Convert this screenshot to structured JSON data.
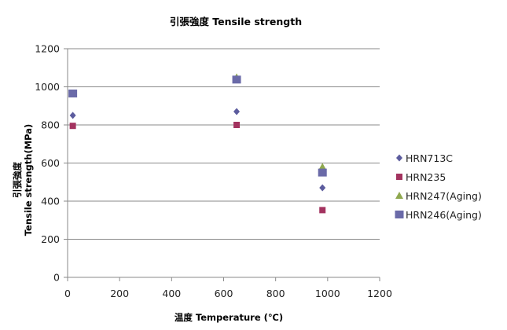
{
  "chart_data": {
    "type": "scatter",
    "title": "引張強度 Tensile strength",
    "xlabel": "温度 Temperature (℃)",
    "ylabel_line1": "引張強度",
    "ylabel_line2": "Tensile strength(MPa)",
    "xlim": [
      0,
      1200
    ],
    "ylim": [
      0,
      1200
    ],
    "x_ticks": [
      0,
      200,
      400,
      600,
      800,
      1000,
      1200
    ],
    "y_ticks": [
      0,
      200,
      400,
      600,
      800,
      1000,
      1200
    ],
    "grid": "horizontal",
    "legend_position": "right",
    "series": [
      {
        "name": "HRN713C",
        "marker": "diamond",
        "color": "#5c5c9e",
        "points": [
          [
            20,
            850
          ],
          [
            650,
            870
          ],
          [
            980,
            470
          ]
        ]
      },
      {
        "name": "HRN235",
        "marker": "square",
        "color": "#a3335f",
        "points": [
          [
            20,
            795
          ],
          [
            650,
            800
          ],
          [
            980,
            353
          ]
        ]
      },
      {
        "name": "HRN247(Aging)",
        "marker": "triangle",
        "color": "#8fa84f",
        "points": [
          [
            20,
            965
          ],
          [
            650,
            1050
          ],
          [
            980,
            580
          ]
        ]
      },
      {
        "name": "HRN246(Aging)",
        "marker": "bigsquare",
        "color": "#6a6aa8",
        "points": [
          [
            20,
            965
          ],
          [
            650,
            1038
          ],
          [
            980,
            550
          ]
        ]
      }
    ]
  }
}
